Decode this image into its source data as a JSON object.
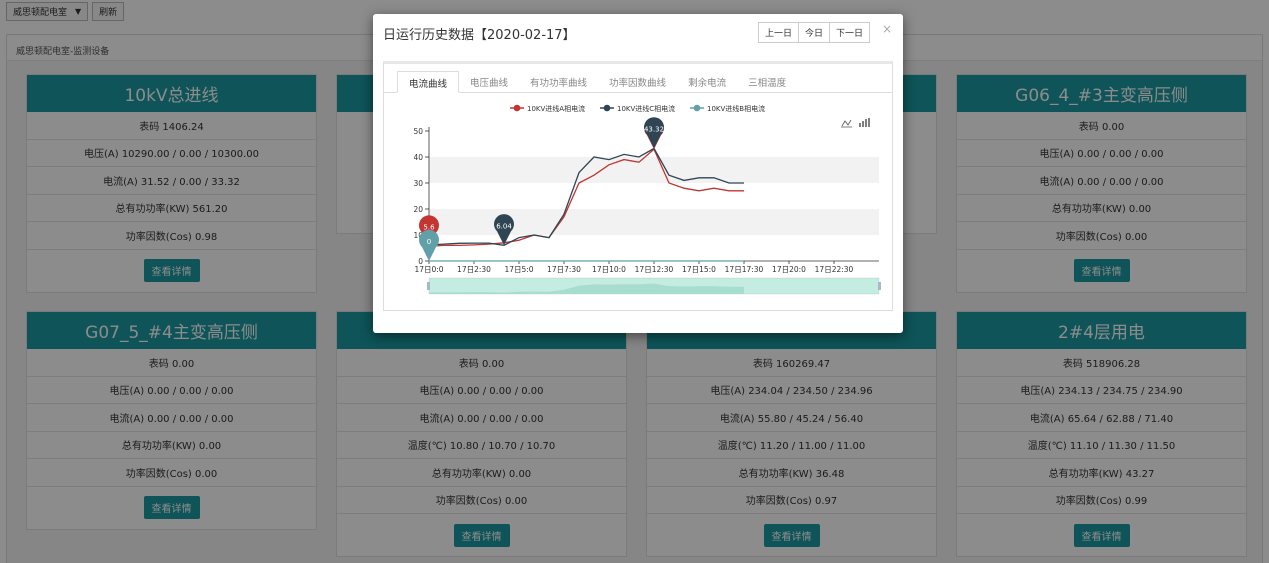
{
  "toolbar": {
    "room_select": "威思顿配电室",
    "refresh_label": "刷新"
  },
  "panel": {
    "breadcrumb": "威思顿配电室-监测设备"
  },
  "cards": [
    {
      "title": "10kV总进线",
      "rows": [
        "表码 1406.24",
        "电压(A) 10290.00 / 0.00 / 10300.00",
        "电流(A) 31.52 / 0.00 / 33.32",
        "总有功功率(KW) 561.20",
        "功率因数(Cos) 0.98"
      ],
      "button": "查看详情"
    },
    {
      "title": "",
      "rows": [],
      "button": ""
    },
    {
      "title": "",
      "rows": [],
      "button": ""
    },
    {
      "title": "G06_4_#3主变高压侧",
      "rows": [
        "表码 0.00",
        "电压(A) 0.00 / 0.00 / 0.00",
        "电流(A) 0.00 / 0.00 / 0.00",
        "总有功功率(KW) 0.00",
        "功率因数(Cos) 0.00"
      ],
      "button": "查看详情"
    },
    {
      "title": "G07_5_#4主变高压侧",
      "rows": [
        "表码 0.00",
        "电压(A) 0.00 / 0.00 / 0.00",
        "电流(A) 0.00 / 0.00 / 0.00",
        "总有功功率(KW) 0.00",
        "功率因数(Cos) 0.00"
      ],
      "button": "查看详情"
    },
    {
      "title": "",
      "rows": [
        "表码 0.00",
        "电压(A) 0.00 / 0.00 / 0.00",
        "电流(A) 0.00 / 0.00 / 0.00",
        "温度(℃) 10.80 / 10.70 / 10.70",
        "总有功功率(KW) 0.00",
        "功率因数(Cos) 0.00"
      ],
      "button": "查看详情"
    },
    {
      "title": "",
      "rows": [
        "表码 160269.47",
        "电压(A) 234.04 / 234.50 / 234.96",
        "电流(A) 55.80 / 45.24 / 56.40",
        "温度(℃) 11.20 / 11.00 / 11.00",
        "总有功功率(KW) 36.48",
        "功率因数(Cos) 0.97"
      ],
      "button": "查看详情"
    },
    {
      "title": "2#4层用电",
      "rows": [
        "表码 518906.28",
        "电压(A) 234.13 / 234.75 / 234.90",
        "电流(A) 65.64 / 62.88 / 71.40",
        "温度(℃) 11.10 / 11.30 / 11.50",
        "总有功功率(KW) 43.27",
        "功率因数(Cos) 0.99"
      ],
      "button": "查看详情"
    }
  ],
  "modal": {
    "title": "日运行历史数据【2020-02-17】",
    "prev_day": "上一日",
    "today": "今日",
    "next_day": "下一日",
    "close": "×",
    "tabs": [
      "电流曲线",
      "电压曲线",
      "有功功率曲线",
      "功率因数曲线",
      "剩余电流",
      "三相温度"
    ]
  },
  "chart_data": {
    "type": "line",
    "legend_position": "top-center",
    "x": [
      "17日0:0",
      "17日0:45",
      "17日1:30",
      "17日2:15",
      "17日3:0",
      "17日3:45",
      "17日4:30",
      "17日5:15",
      "17日6:0",
      "17日6:45",
      "17日7:30",
      "17日8:15",
      "17日9:0",
      "17日9:45",
      "17日10:30",
      "17日11:15",
      "17日12:0",
      "17日12:45",
      "17日13:30",
      "17日14:15",
      "17日15:0",
      "17日15:45"
    ],
    "x_tick_labels": [
      "17日0:0",
      "17日2:30",
      "17日5:0",
      "17日7:30",
      "17日10:0",
      "17日12:30",
      "17日15:0",
      "17日17:30",
      "17日20:0",
      "17日22:30"
    ],
    "y_ticks": [
      "0",
      "10",
      "20",
      "30",
      "40",
      "50"
    ],
    "ylim": [
      0,
      50
    ],
    "grid": true,
    "series": [
      {
        "name": "10KV进线A相电流",
        "color": "#c23531",
        "values": [
          5.6,
          6,
          6,
          6.2,
          6.5,
          7,
          8,
          10,
          9,
          17,
          30,
          33,
          37,
          39,
          38,
          43,
          30,
          28,
          27,
          28,
          27,
          27
        ],
        "max_label": "43.32",
        "min_label": "5.6"
      },
      {
        "name": "10KV进线C相电流",
        "color": "#2f4554",
        "values": [
          6.2,
          6.5,
          6.8,
          6.9,
          6.9,
          6.04,
          9,
          10,
          9,
          18,
          34,
          40,
          39,
          41,
          40,
          43.32,
          33,
          31,
          32,
          32,
          30,
          30
        ],
        "max_label": "43.32",
        "min_label": "6.04"
      },
      {
        "name": "10KV进线B相电流",
        "color": "#61a0a8",
        "values": [
          0,
          0,
          0,
          0,
          0,
          0,
          0,
          0,
          0,
          0,
          0,
          0,
          0,
          0,
          0,
          0,
          0,
          0,
          0,
          0,
          0,
          0
        ],
        "min_label": "0"
      }
    ]
  }
}
